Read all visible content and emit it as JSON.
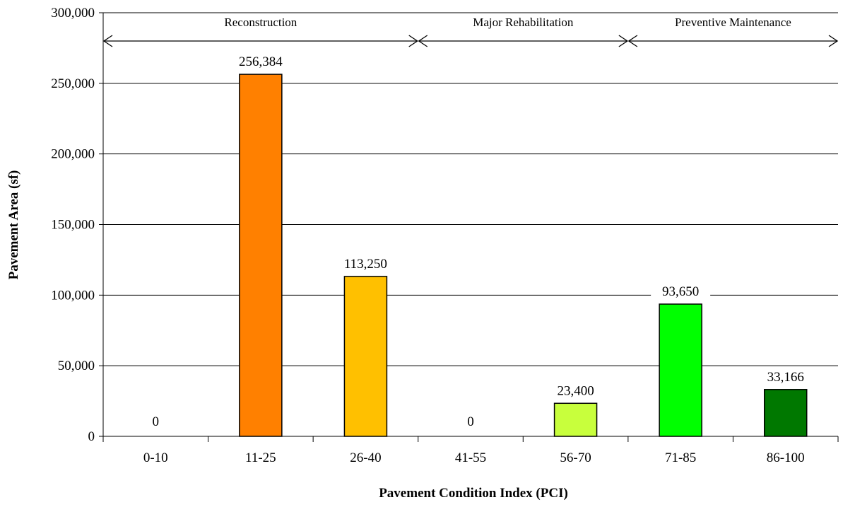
{
  "chart_data": {
    "type": "bar",
    "title": "",
    "xlabel": "Pavement Condition Index (PCI)",
    "ylabel": "Pavement Area (sf)",
    "categories": [
      "0-10",
      "11-25",
      "26-40",
      "41-55",
      "56-70",
      "71-85",
      "86-100"
    ],
    "values": [
      0,
      256384,
      113250,
      0,
      23400,
      93650,
      33166
    ],
    "value_labels": [
      "0",
      "256,384",
      "113,250",
      "0",
      "23,400",
      "93,650",
      "33,166"
    ],
    "bar_colors": [
      "#FF8000",
      "#FF8000",
      "#FFC000",
      "#C8FF3C",
      "#C8FF3C",
      "#00FF00",
      "#007800"
    ],
    "ylim": [
      0,
      300000
    ],
    "yticks": [
      0,
      50000,
      100000,
      150000,
      200000,
      250000,
      300000
    ],
    "ytick_labels": [
      "0",
      "50,000",
      "100,000",
      "150,000",
      "200,000",
      "250,000",
      "300,000"
    ],
    "grid": true,
    "regions": [
      {
        "label": "Reconstruction",
        "from_category": 0,
        "to_category": 2
      },
      {
        "label": "Major Rehabilitation",
        "from_category": 3,
        "to_category": 4
      },
      {
        "label": "Preventive Maintenance",
        "from_category": 5,
        "to_category": 6
      }
    ]
  }
}
